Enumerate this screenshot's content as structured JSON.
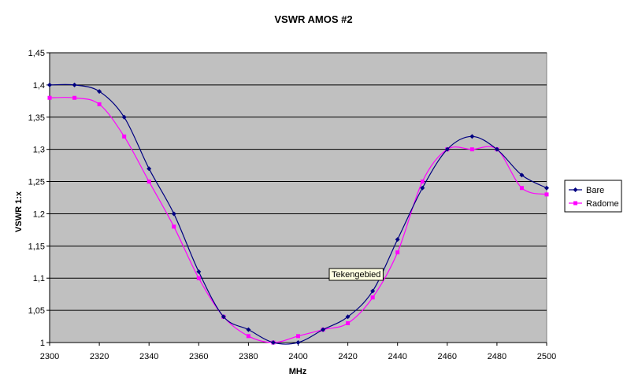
{
  "chart_data": {
    "type": "line",
    "title": "VSWR AMOS #2",
    "xlabel": "MHz",
    "ylabel": "VSWR 1:x",
    "xlim": [
      2300,
      2500
    ],
    "ylim": [
      1,
      1.45
    ],
    "x_ticks": [
      "2300",
      "2320",
      "2340",
      "2360",
      "2380",
      "2400",
      "2420",
      "2440",
      "2460",
      "2480",
      "2500"
    ],
    "y_ticks": [
      "1",
      "1,05",
      "1,1",
      "1,15",
      "1,2",
      "1,25",
      "1,3",
      "1,35",
      "1,4",
      "1,45"
    ],
    "grid": "horizontal",
    "legend_position": "right",
    "plot_background": "#c0c0c0",
    "tooltip": "Tekengebied",
    "x": [
      2300,
      2310,
      2320,
      2330,
      2340,
      2350,
      2360,
      2370,
      2380,
      2390,
      2400,
      2410,
      2420,
      2430,
      2440,
      2450,
      2460,
      2470,
      2480,
      2490,
      2500
    ],
    "series": [
      {
        "name": "Bare",
        "color": "#000080",
        "marker": "diamond",
        "values": [
          1.4,
          1.4,
          1.39,
          1.35,
          1.27,
          1.2,
          1.11,
          1.04,
          1.02,
          1.0,
          1.0,
          1.02,
          1.04,
          1.08,
          1.16,
          1.24,
          1.3,
          1.32,
          1.3,
          1.26,
          1.24
        ]
      },
      {
        "name": "Radome",
        "color": "#ff00ff",
        "marker": "square",
        "values": [
          1.38,
          1.38,
          1.37,
          1.32,
          1.25,
          1.18,
          1.1,
          1.04,
          1.01,
          1.0,
          1.01,
          1.02,
          1.03,
          1.07,
          1.14,
          1.25,
          1.3,
          1.3,
          1.3,
          1.24,
          1.23
        ]
      }
    ]
  }
}
